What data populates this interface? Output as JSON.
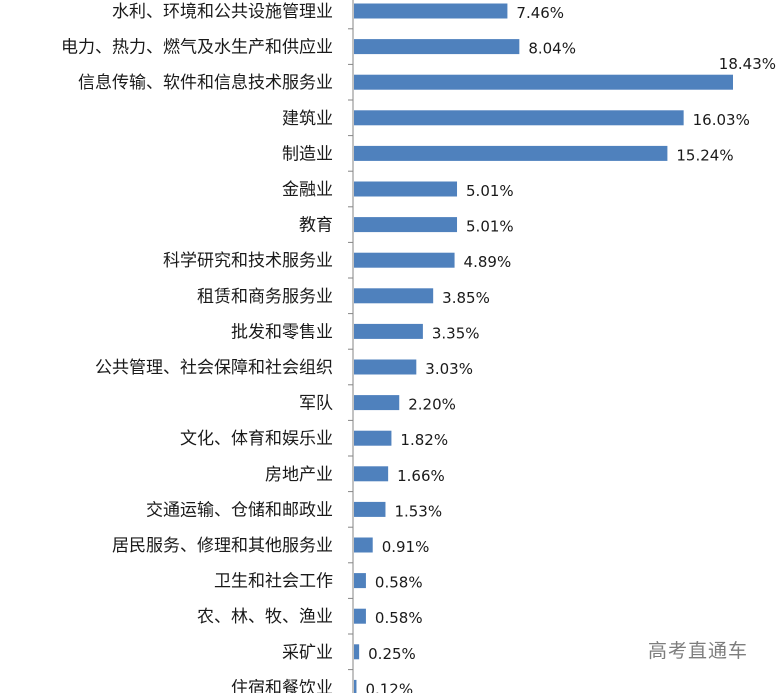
{
  "watermark": "高考直通车",
  "chart_data": {
    "type": "bar",
    "orientation": "horizontal",
    "categories": [
      "水利、环境和公共设施管理业",
      "电力、热力、燃气及水生产和供应业",
      "信息传输、软件和信息技术服务业",
      "建筑业",
      "制造业",
      "金融业",
      "教育",
      "科学研究和技术服务业",
      "租赁和商务服务业",
      "批发和零售业",
      "公共管理、社会保障和社会组织",
      "军队",
      "文化、体育和娱乐业",
      "房地产业",
      "交通运输、仓储和邮政业",
      "居民服务、修理和其他服务业",
      "卫生和社会工作",
      "农、林、牧、渔业",
      "采矿业",
      "住宿和餐饮业"
    ],
    "values": [
      7.46,
      8.04,
      18.43,
      16.03,
      15.24,
      5.01,
      5.01,
      4.89,
      3.85,
      3.35,
      3.03,
      2.2,
      1.82,
      1.66,
      1.53,
      0.91,
      0.58,
      0.58,
      0.25,
      0.12
    ],
    "value_labels": [
      "7.46%",
      "8.04%",
      "18.43%",
      "16.03%",
      "15.24%",
      "5.01%",
      "5.01%",
      "4.89%",
      "3.85%",
      "3.35%",
      "3.03%",
      "2.20%",
      "1.82%",
      "1.66%",
      "1.53%",
      "0.91%",
      "0.58%",
      "0.58%",
      "0.25%",
      "0.12%"
    ],
    "bar_color": "#4f81bd",
    "axis_color": "#868686",
    "xlim": [
      0,
      18.43
    ],
    "grid": false,
    "legend": "none"
  }
}
